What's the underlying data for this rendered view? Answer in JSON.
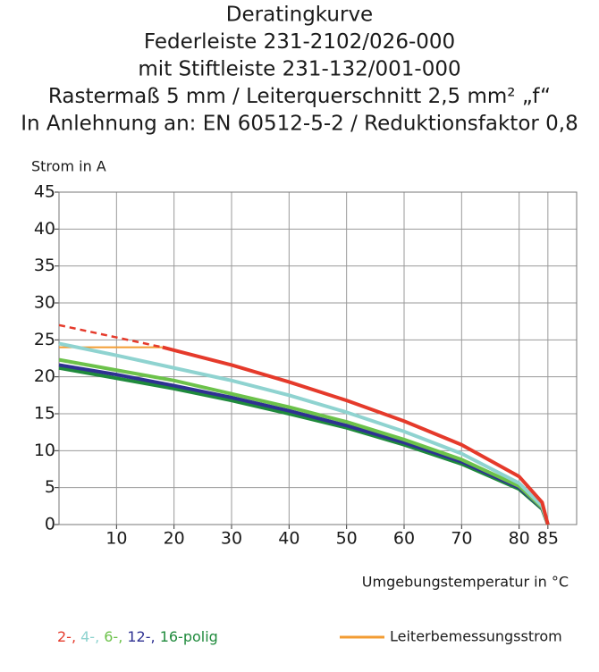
{
  "chart_data": {
    "type": "line",
    "title_lines": [
      "Deratingkurve",
      "Federleiste 231-2102/026-000",
      "mit Stiftleiste 231-132/001-000",
      "Rastermaß 5 mm / Leiterquerschnitt 2,5 mm² „f“",
      "In Anlehnung an: EN 60512-5-2 / Reduktionsfaktor 0,8"
    ],
    "y_label": "Strom in A",
    "x_label": "Umgebungstemperatur in °C",
    "xlim": [
      0,
      90
    ],
    "ylim": [
      0,
      45
    ],
    "xticks": [
      10,
      20,
      30,
      40,
      50,
      60,
      70,
      80,
      85
    ],
    "yticks": [
      0,
      5,
      10,
      15,
      20,
      25,
      30,
      35,
      40,
      45
    ],
    "grid": true,
    "series": [
      {
        "name": "2-,",
        "color": "#e53a2b",
        "x": [
          18,
          20,
          30,
          40,
          50,
          60,
          70,
          80,
          84,
          85
        ],
        "values": [
          24,
          23.6,
          21.6,
          19.3,
          16.8,
          14,
          10.8,
          6.5,
          3,
          0
        ]
      },
      {
        "name": "4-,",
        "color": "#8fd3d0",
        "x": [
          0,
          10,
          20,
          30,
          40,
          50,
          60,
          70,
          80,
          84,
          85
        ],
        "values": [
          24.5,
          22.9,
          21.2,
          19.5,
          17.5,
          15.2,
          12.6,
          9.6,
          5.6,
          2.5,
          0
        ]
      },
      {
        "name": "6-,",
        "color": "#6cc24a",
        "x": [
          0,
          10,
          20,
          30,
          40,
          50,
          60,
          70,
          80,
          84,
          85
        ],
        "values": [
          22.3,
          20.9,
          19.5,
          17.7,
          15.9,
          13.9,
          11.5,
          8.8,
          5.2,
          2.3,
          0
        ]
      },
      {
        "name": "12-,",
        "color": "#2e3192",
        "x": [
          0,
          10,
          20,
          30,
          40,
          50,
          60,
          70,
          80,
          84,
          85
        ],
        "values": [
          21.6,
          20.3,
          18.8,
          17.2,
          15.4,
          13.4,
          11.1,
          8.5,
          5,
          2.2,
          0
        ]
      },
      {
        "name": "16-polig",
        "color": "#1f8a3c",
        "x": [
          0,
          10,
          20,
          30,
          40,
          50,
          60,
          70,
          80,
          84,
          85
        ],
        "values": [
          21.2,
          19.8,
          18.4,
          16.8,
          15,
          13.1,
          10.8,
          8.2,
          4.8,
          2.1,
          0
        ]
      }
    ],
    "red_dashed": {
      "color": "#e53a2b",
      "x": [
        0,
        18
      ],
      "values": [
        27,
        24
      ]
    },
    "rated_current": {
      "name": "Leiterbemessungsstrom",
      "color": "#f39c33",
      "x": [
        0,
        18
      ],
      "values": [
        24,
        24
      ]
    }
  }
}
